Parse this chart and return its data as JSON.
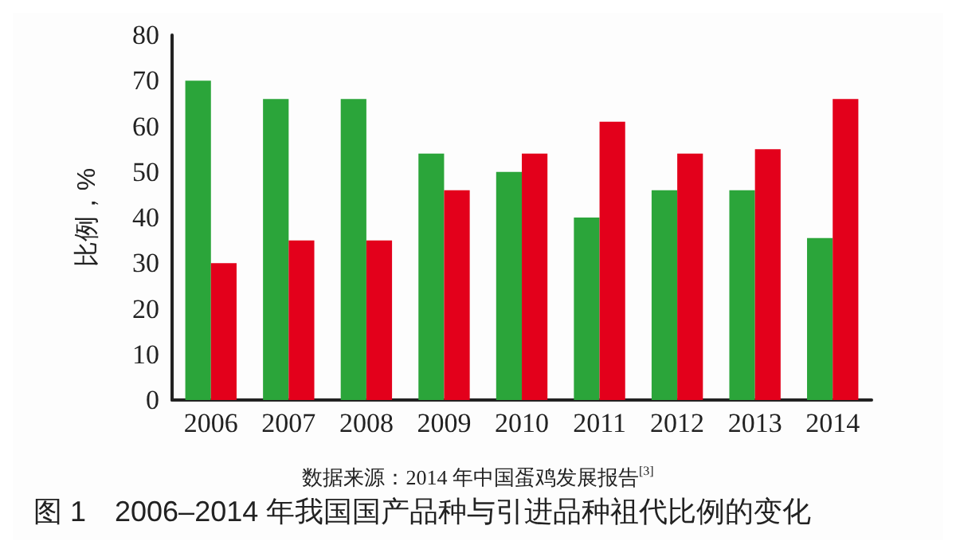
{
  "chart_data": {
    "type": "bar",
    "title": "图 1　2006–2014 年我国国产品种与引进品种祖代比例的变化",
    "ylabel": "比例，%",
    "annotations": [
      "数据来源：2014 年中国蛋鸡发展报告$^{[3]}$"
    ],
    "categories": [
      "2006",
      "2007",
      "2008",
      "2009",
      "2010",
      "2011",
      "2012",
      "2013",
      "2014"
    ],
    "series": [
      {
        "color": "#2ba53a",
        "values": [
          70,
          66,
          66,
          54,
          50,
          40,
          46,
          46,
          35.5
        ]
      },
      {
        "color": "#e3001b",
        "values": [
          30,
          35,
          35,
          46,
          54,
          61,
          54,
          55,
          66
        ]
      }
    ],
    "ylim": [
      0,
      80
    ],
    "yticks": [
      0,
      10,
      20,
      30,
      40,
      50,
      60,
      70,
      80
    ],
    "grid": false
  }
}
